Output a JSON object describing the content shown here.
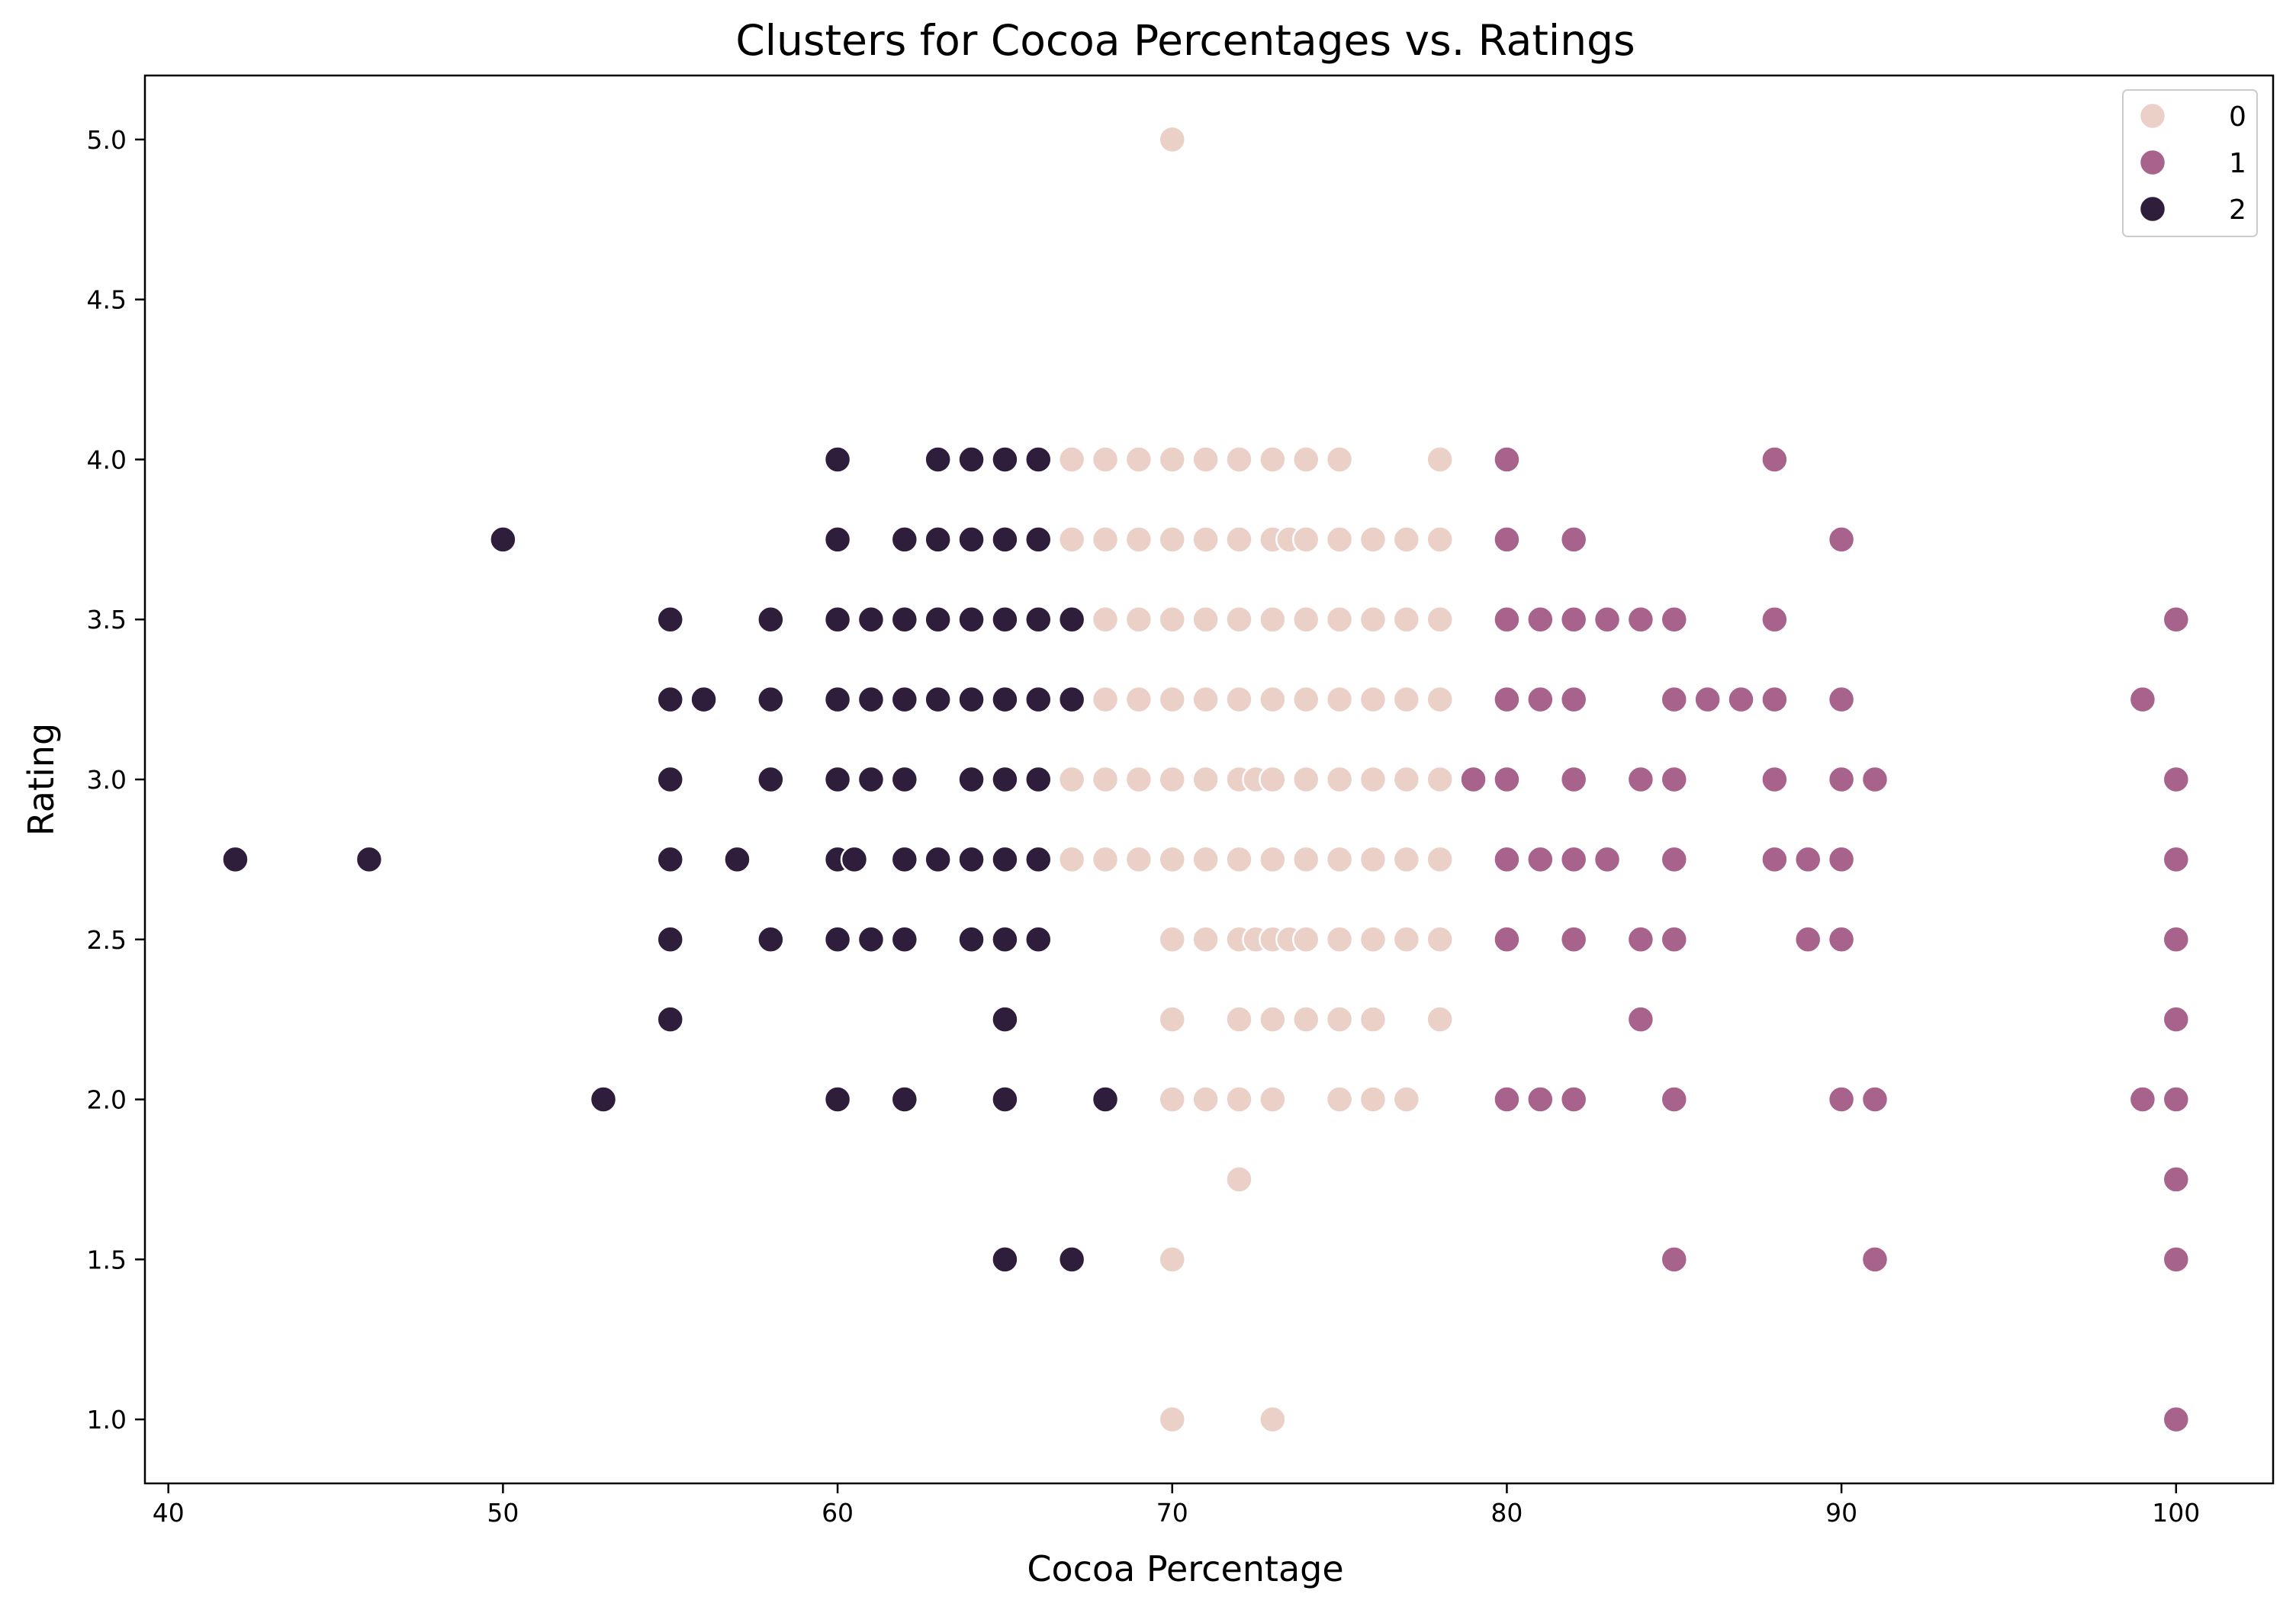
{
  "chart_data": {
    "type": "scatter",
    "title": "Clusters for Cocoa Percentages vs. Ratings",
    "xlabel": "Cocoa Percentage",
    "ylabel": "Rating",
    "xlim": [
      39.3,
      102.9
    ],
    "ylim": [
      0.8,
      5.2
    ],
    "xticks": [
      40,
      50,
      60,
      70,
      80,
      90,
      100
    ],
    "xtick_labels": [
      "40",
      "50",
      "60",
      "70",
      "80",
      "90",
      "100"
    ],
    "yticks": [
      1.0,
      1.5,
      2.0,
      2.5,
      3.0,
      3.5,
      4.0,
      4.5,
      5.0
    ],
    "ytick_labels": [
      "1.0",
      "1.5",
      "2.0",
      "2.5",
      "3.0",
      "3.5",
      "4.0",
      "4.5",
      "5.0"
    ],
    "grid": false,
    "legend_position": "top-right",
    "legend": [
      {
        "label": "0",
        "color": "#ebd0c8"
      },
      {
        "label": "1",
        "color": "#a8638c"
      },
      {
        "label": "2",
        "color": "#2e1e3b"
      }
    ],
    "series": [
      {
        "name": "0",
        "color": "#ebd0c8",
        "points": [
          [
            70,
            5.0
          ],
          [
            67,
            4.0
          ],
          [
            68,
            4.0
          ],
          [
            69,
            4.0
          ],
          [
            70,
            4.0
          ],
          [
            71,
            4.0
          ],
          [
            72,
            4.0
          ],
          [
            73,
            4.0
          ],
          [
            74,
            4.0
          ],
          [
            75,
            4.0
          ],
          [
            78,
            4.0
          ],
          [
            67,
            3.75
          ],
          [
            68,
            3.75
          ],
          [
            69,
            3.75
          ],
          [
            70,
            3.75
          ],
          [
            71,
            3.75
          ],
          [
            72,
            3.75
          ],
          [
            73,
            3.75
          ],
          [
            73.5,
            3.75
          ],
          [
            74,
            3.75
          ],
          [
            75,
            3.75
          ],
          [
            76,
            3.75
          ],
          [
            77,
            3.75
          ],
          [
            78,
            3.75
          ],
          [
            68,
            3.5
          ],
          [
            69,
            3.5
          ],
          [
            70,
            3.5
          ],
          [
            71,
            3.5
          ],
          [
            72,
            3.5
          ],
          [
            73,
            3.5
          ],
          [
            74,
            3.5
          ],
          [
            75,
            3.5
          ],
          [
            76,
            3.5
          ],
          [
            77,
            3.5
          ],
          [
            78,
            3.5
          ],
          [
            68,
            3.25
          ],
          [
            69,
            3.25
          ],
          [
            70,
            3.25
          ],
          [
            71,
            3.25
          ],
          [
            72,
            3.25
          ],
          [
            73,
            3.25
          ],
          [
            74,
            3.25
          ],
          [
            75,
            3.25
          ],
          [
            76,
            3.25
          ],
          [
            77,
            3.25
          ],
          [
            78,
            3.25
          ],
          [
            67,
            3.0
          ],
          [
            68,
            3.0
          ],
          [
            69,
            3.0
          ],
          [
            70,
            3.0
          ],
          [
            71,
            3.0
          ],
          [
            72,
            3.0
          ],
          [
            72.5,
            3.0
          ],
          [
            73,
            3.0
          ],
          [
            74,
            3.0
          ],
          [
            75,
            3.0
          ],
          [
            76,
            3.0
          ],
          [
            77,
            3.0
          ],
          [
            78,
            3.0
          ],
          [
            67,
            2.75
          ],
          [
            68,
            2.75
          ],
          [
            69,
            2.75
          ],
          [
            70,
            2.75
          ],
          [
            71,
            2.75
          ],
          [
            72,
            2.75
          ],
          [
            73,
            2.75
          ],
          [
            74,
            2.75
          ],
          [
            75,
            2.75
          ],
          [
            76,
            2.75
          ],
          [
            77,
            2.75
          ],
          [
            78,
            2.75
          ],
          [
            70,
            2.5
          ],
          [
            71,
            2.5
          ],
          [
            72,
            2.5
          ],
          [
            72.5,
            2.5
          ],
          [
            73,
            2.5
          ],
          [
            73.5,
            2.5
          ],
          [
            74,
            2.5
          ],
          [
            75,
            2.5
          ],
          [
            76,
            2.5
          ],
          [
            77,
            2.5
          ],
          [
            78,
            2.5
          ],
          [
            70,
            2.25
          ],
          [
            72,
            2.25
          ],
          [
            73,
            2.25
          ],
          [
            74,
            2.25
          ],
          [
            75,
            2.25
          ],
          [
            76,
            2.25
          ],
          [
            78,
            2.25
          ],
          [
            70,
            2.0
          ],
          [
            71,
            2.0
          ],
          [
            72,
            2.0
          ],
          [
            73,
            2.0
          ],
          [
            75,
            2.0
          ],
          [
            76,
            2.0
          ],
          [
            77,
            2.0
          ],
          [
            72,
            1.75
          ],
          [
            70,
            1.5
          ],
          [
            70,
            1.0
          ],
          [
            73,
            1.0
          ]
        ]
      },
      {
        "name": "1",
        "color": "#a8638c",
        "points": [
          [
            80,
            4.0
          ],
          [
            88,
            4.0
          ],
          [
            80,
            3.75
          ],
          [
            82,
            3.75
          ],
          [
            90,
            3.75
          ],
          [
            80,
            3.5
          ],
          [
            81,
            3.5
          ],
          [
            82,
            3.5
          ],
          [
            83,
            3.5
          ],
          [
            84,
            3.5
          ],
          [
            85,
            3.5
          ],
          [
            88,
            3.5
          ],
          [
            100,
            3.5
          ],
          [
            80,
            3.25
          ],
          [
            81,
            3.25
          ],
          [
            82,
            3.25
          ],
          [
            85,
            3.25
          ],
          [
            86,
            3.25
          ],
          [
            87,
            3.25
          ],
          [
            88,
            3.25
          ],
          [
            90,
            3.25
          ],
          [
            99,
            3.25
          ],
          [
            79,
            3.0
          ],
          [
            80,
            3.0
          ],
          [
            82,
            3.0
          ],
          [
            84,
            3.0
          ],
          [
            85,
            3.0
          ],
          [
            88,
            3.0
          ],
          [
            90,
            3.0
          ],
          [
            91,
            3.0
          ],
          [
            100,
            3.0
          ],
          [
            80,
            2.75
          ],
          [
            81,
            2.75
          ],
          [
            82,
            2.75
          ],
          [
            83,
            2.75
          ],
          [
            85,
            2.75
          ],
          [
            88,
            2.75
          ],
          [
            89,
            2.75
          ],
          [
            90,
            2.75
          ],
          [
            100,
            2.75
          ],
          [
            80,
            2.5
          ],
          [
            82,
            2.5
          ],
          [
            84,
            2.5
          ],
          [
            85,
            2.5
          ],
          [
            89,
            2.5
          ],
          [
            90,
            2.5
          ],
          [
            100,
            2.5
          ],
          [
            84,
            2.25
          ],
          [
            100,
            2.25
          ],
          [
            80,
            2.0
          ],
          [
            81,
            2.0
          ],
          [
            82,
            2.0
          ],
          [
            85,
            2.0
          ],
          [
            90,
            2.0
          ],
          [
            91,
            2.0
          ],
          [
            99,
            2.0
          ],
          [
            100,
            2.0
          ],
          [
            100,
            1.75
          ],
          [
            85,
            1.5
          ],
          [
            91,
            1.5
          ],
          [
            100,
            1.5
          ],
          [
            100,
            1.0
          ]
        ]
      },
      {
        "name": "2",
        "color": "#2e1e3b",
        "points": [
          [
            60,
            4.0
          ],
          [
            63,
            4.0
          ],
          [
            64,
            4.0
          ],
          [
            65,
            4.0
          ],
          [
            66,
            4.0
          ],
          [
            50,
            3.75
          ],
          [
            60,
            3.75
          ],
          [
            62,
            3.75
          ],
          [
            63,
            3.75
          ],
          [
            64,
            3.75
          ],
          [
            65,
            3.75
          ],
          [
            66,
            3.75
          ],
          [
            55,
            3.5
          ],
          [
            58,
            3.5
          ],
          [
            60,
            3.5
          ],
          [
            61,
            3.5
          ],
          [
            62,
            3.5
          ],
          [
            63,
            3.5
          ],
          [
            64,
            3.5
          ],
          [
            65,
            3.5
          ],
          [
            66,
            3.5
          ],
          [
            67,
            3.5
          ],
          [
            55,
            3.25
          ],
          [
            56,
            3.25
          ],
          [
            58,
            3.25
          ],
          [
            60,
            3.25
          ],
          [
            61,
            3.25
          ],
          [
            62,
            3.25
          ],
          [
            63,
            3.25
          ],
          [
            64,
            3.25
          ],
          [
            65,
            3.25
          ],
          [
            66,
            3.25
          ],
          [
            67,
            3.25
          ],
          [
            55,
            3.0
          ],
          [
            58,
            3.0
          ],
          [
            60,
            3.0
          ],
          [
            61,
            3.0
          ],
          [
            62,
            3.0
          ],
          [
            64,
            3.0
          ],
          [
            65,
            3.0
          ],
          [
            66,
            3.0
          ],
          [
            42,
            2.75
          ],
          [
            46,
            2.75
          ],
          [
            55,
            2.75
          ],
          [
            57,
            2.75
          ],
          [
            60,
            2.75
          ],
          [
            60.5,
            2.75
          ],
          [
            62,
            2.75
          ],
          [
            63,
            2.75
          ],
          [
            64,
            2.75
          ],
          [
            65,
            2.75
          ],
          [
            66,
            2.75
          ],
          [
            55,
            2.5
          ],
          [
            58,
            2.5
          ],
          [
            60,
            2.5
          ],
          [
            61,
            2.5
          ],
          [
            62,
            2.5
          ],
          [
            64,
            2.5
          ],
          [
            65,
            2.5
          ],
          [
            66,
            2.5
          ],
          [
            55,
            2.25
          ],
          [
            65,
            2.25
          ],
          [
            53,
            2.0
          ],
          [
            60,
            2.0
          ],
          [
            62,
            2.0
          ],
          [
            65,
            2.0
          ],
          [
            68,
            2.0
          ],
          [
            65,
            1.5
          ],
          [
            67,
            1.5
          ]
        ]
      }
    ]
  }
}
